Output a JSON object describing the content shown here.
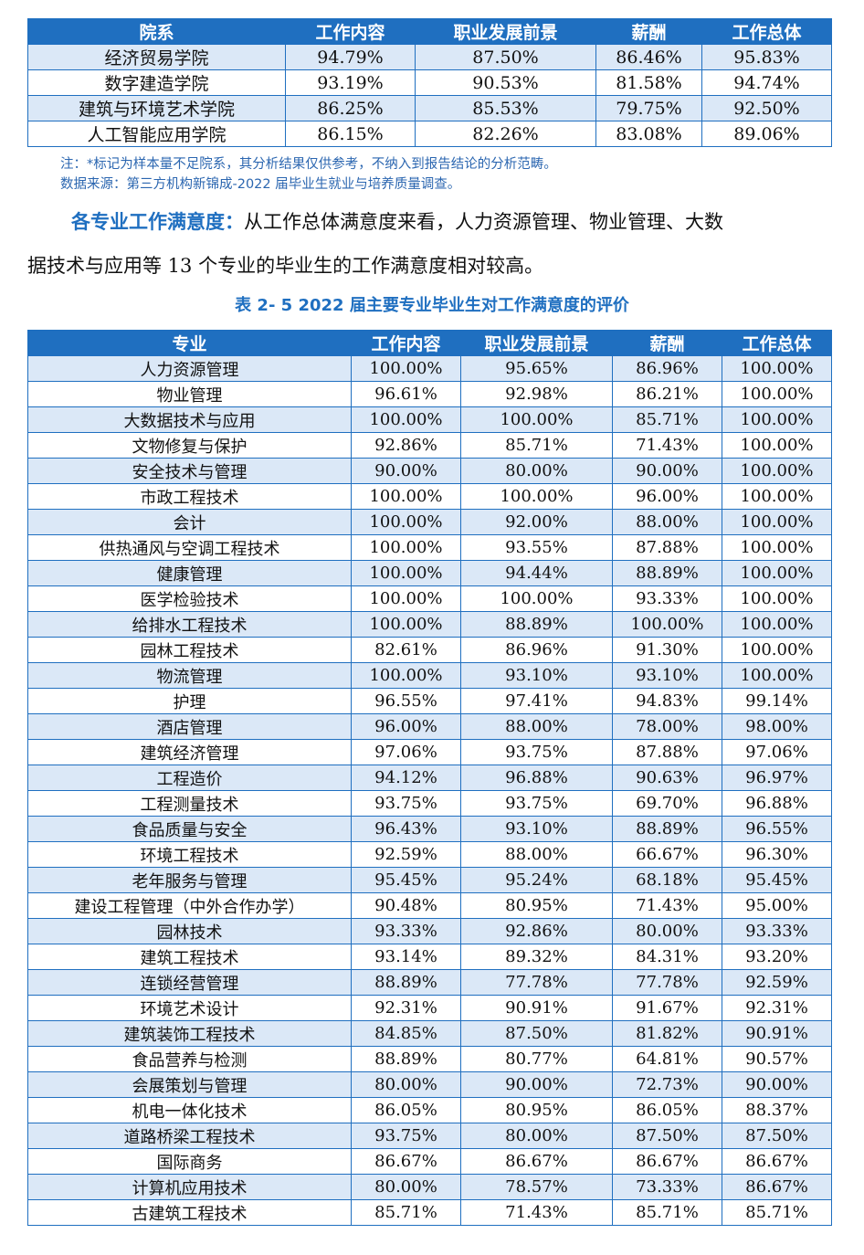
{
  "top_table": {
    "headers": [
      "院系",
      "工作内容",
      "职业发展前景",
      "薪酬",
      "工作总体"
    ],
    "rows": [
      [
        "经济贸易学院",
        "94.79%",
        "87.50%",
        "86.46%",
        "95.83%"
      ],
      [
        "数字建造学院",
        "93.19%",
        "90.53%",
        "81.58%",
        "94.74%"
      ],
      [
        "建筑与环境艺术学院",
        "86.25%",
        "85.53%",
        "79.75%",
        "92.50%"
      ],
      [
        "人工智能应用学院",
        "86.15%",
        "82.26%",
        "83.08%",
        "89.06%"
      ]
    ]
  },
  "notes": {
    "note1": "注：*标记为样本量不足院系，其分析结果仅供参考，不纳入到报告结论的分析范畴。",
    "note2": "数据来源：第三方机构新锦成-2022 届毕业生就业与培养质量调查。"
  },
  "paragraph": {
    "lead": "各专业工作满意度：",
    "line1_rest": "从工作总体满意度来看，人力资源管理、物业管理、大数",
    "line2": "据技术与应用等 13 个专业的毕业生的工作满意度相对较高。"
  },
  "table_caption": "表 2- 5  2022 届主要专业毕业生对工作满意度的评价",
  "major_table": {
    "headers": [
      "专业",
      "工作内容",
      "职业发展前景",
      "薪酬",
      "工作总体"
    ],
    "rows": [
      [
        "人力资源管理",
        "100.00%",
        "95.65%",
        "86.96%",
        "100.00%"
      ],
      [
        "物业管理",
        "96.61%",
        "92.98%",
        "86.21%",
        "100.00%"
      ],
      [
        "大数据技术与应用",
        "100.00%",
        "100.00%",
        "85.71%",
        "100.00%"
      ],
      [
        "文物修复与保护",
        "92.86%",
        "85.71%",
        "71.43%",
        "100.00%"
      ],
      [
        "安全技术与管理",
        "90.00%",
        "80.00%",
        "90.00%",
        "100.00%"
      ],
      [
        "市政工程技术",
        "100.00%",
        "100.00%",
        "96.00%",
        "100.00%"
      ],
      [
        "会计",
        "100.00%",
        "92.00%",
        "88.00%",
        "100.00%"
      ],
      [
        "供热通风与空调工程技术",
        "100.00%",
        "93.55%",
        "87.88%",
        "100.00%"
      ],
      [
        "健康管理",
        "100.00%",
        "94.44%",
        "88.89%",
        "100.00%"
      ],
      [
        "医学检验技术",
        "100.00%",
        "100.00%",
        "93.33%",
        "100.00%"
      ],
      [
        "给排水工程技术",
        "100.00%",
        "88.89%",
        "100.00%",
        "100.00%"
      ],
      [
        "园林工程技术",
        "82.61%",
        "86.96%",
        "91.30%",
        "100.00%"
      ],
      [
        "物流管理",
        "100.00%",
        "93.10%",
        "93.10%",
        "100.00%"
      ],
      [
        "护理",
        "96.55%",
        "97.41%",
        "94.83%",
        "99.14%"
      ],
      [
        "酒店管理",
        "96.00%",
        "88.00%",
        "78.00%",
        "98.00%"
      ],
      [
        "建筑经济管理",
        "97.06%",
        "93.75%",
        "87.88%",
        "97.06%"
      ],
      [
        "工程造价",
        "94.12%",
        "96.88%",
        "90.63%",
        "96.97%"
      ],
      [
        "工程测量技术",
        "93.75%",
        "93.75%",
        "69.70%",
        "96.88%"
      ],
      [
        "食品质量与安全",
        "96.43%",
        "93.10%",
        "88.89%",
        "96.55%"
      ],
      [
        "环境工程技术",
        "92.59%",
        "88.00%",
        "66.67%",
        "96.30%"
      ],
      [
        "老年服务与管理",
        "95.45%",
        "95.24%",
        "68.18%",
        "95.45%"
      ],
      [
        "建设工程管理（中外合作办学）",
        "90.48%",
        "80.95%",
        "71.43%",
        "95.00%"
      ],
      [
        "园林技术",
        "93.33%",
        "92.86%",
        "80.00%",
        "93.33%"
      ],
      [
        "建筑工程技术",
        "93.14%",
        "89.32%",
        "84.31%",
        "93.20%"
      ],
      [
        "连锁经营管理",
        "88.89%",
        "77.78%",
        "77.78%",
        "92.59%"
      ],
      [
        "环境艺术设计",
        "92.31%",
        "90.91%",
        "91.67%",
        "92.31%"
      ],
      [
        "建筑装饰工程技术",
        "84.85%",
        "87.50%",
        "81.82%",
        "90.91%"
      ],
      [
        "食品营养与检测",
        "88.89%",
        "80.77%",
        "64.81%",
        "90.57%"
      ],
      [
        "会展策划与管理",
        "80.00%",
        "90.00%",
        "72.73%",
        "90.00%"
      ],
      [
        "机电一体化技术",
        "86.05%",
        "80.95%",
        "86.05%",
        "88.37%"
      ],
      [
        "道路桥梁工程技术",
        "93.75%",
        "80.00%",
        "87.50%",
        "87.50%"
      ],
      [
        "国际商务",
        "86.67%",
        "86.67%",
        "86.67%",
        "86.67%"
      ],
      [
        "计算机应用技术",
        "80.00%",
        "78.57%",
        "73.33%",
        "86.67%"
      ],
      [
        "古建筑工程技术",
        "85.71%",
        "71.43%",
        "85.71%",
        "85.71%"
      ]
    ]
  }
}
